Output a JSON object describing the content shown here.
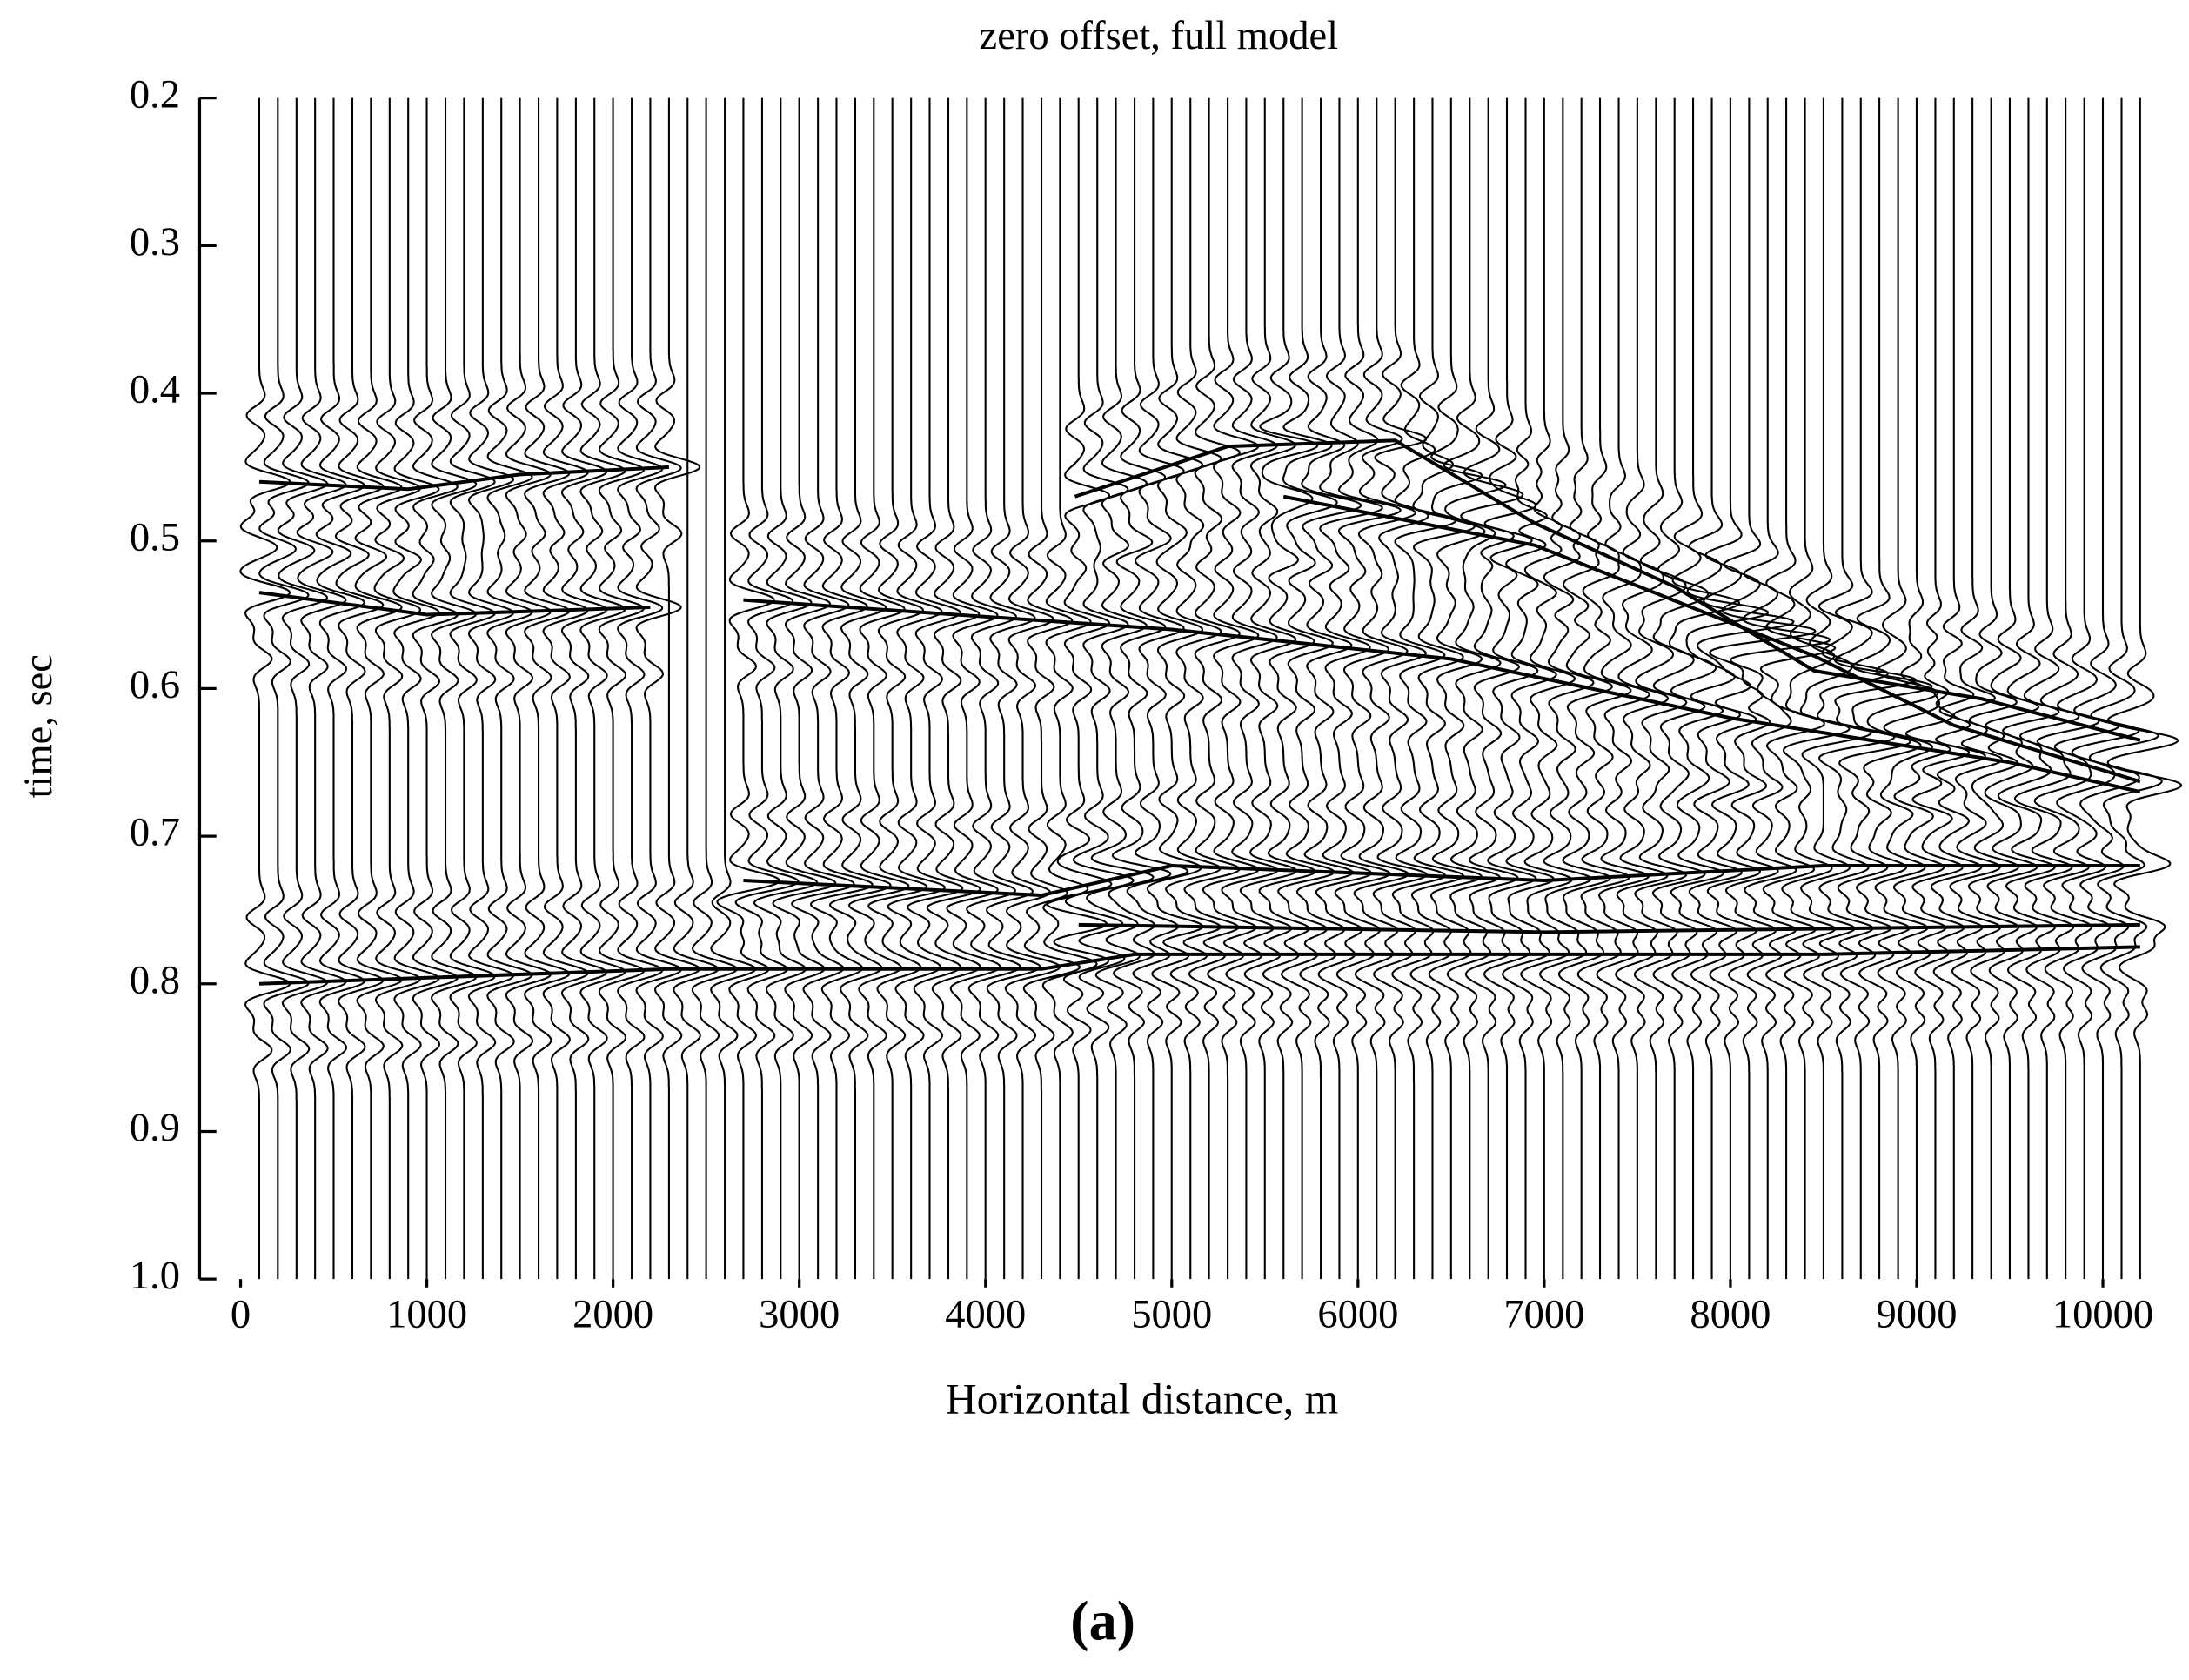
{
  "chart_data": {
    "type": "wiggle",
    "title": "zero offset, full model",
    "xlabel": "Horizontal distance, m",
    "ylabel": "time, sec",
    "caption": "(a)",
    "xlim": [
      -220,
      10200
    ],
    "xticks": [
      0,
      1000,
      2000,
      3000,
      4000,
      5000,
      6000,
      7000,
      8000,
      9000,
      10000
    ],
    "ylim": [
      0.2,
      1
    ],
    "yticks": [
      0.2,
      0.3,
      0.4,
      0.5,
      0.6,
      0.7,
      0.8,
      0.9,
      {
        "value": 1,
        "label": "1.0"
      }
    ],
    "y_inverted": true,
    "color": "#000000",
    "x": [
      100,
      200,
      300,
      400,
      500,
      600,
      700,
      800,
      900,
      1000,
      1100,
      1200,
      1300,
      1400,
      1500,
      1600,
      1700,
      1800,
      1900,
      2000,
      2100,
      2200,
      2300,
      2400,
      2500,
      2600,
      2700,
      2800,
      2900,
      3000,
      3100,
      3200,
      3300,
      3400,
      3500,
      3600,
      3700,
      3800,
      3900,
      4000,
      4100,
      4200,
      4300,
      4400,
      4500,
      4600,
      4700,
      4800,
      4900,
      5000,
      5100,
      5200,
      5300,
      5400,
      5500,
      5600,
      5700,
      5800,
      5900,
      6000,
      6100,
      6200,
      6300,
      6400,
      6500,
      6600,
      6700,
      6800,
      6900,
      7000,
      7100,
      7200,
      7300,
      7400,
      7500,
      7600,
      7700,
      7800,
      7900,
      8000,
      8100,
      8200,
      8300,
      8400,
      8500,
      8600,
      8700,
      8800,
      8900,
      9000,
      9100,
      9200,
      9300,
      9400,
      9500,
      9600,
      9700,
      9800,
      9900,
      10000,
      10100,
      10200
    ],
    "series": [
      {
        "color": "#000000",
        "x": [
          4480,
          5300,
          6200,
          6950,
          7700,
          8450,
          9350,
          10200
        ],
        "values": [
          0.47,
          0.436,
          0.432,
          0.488,
          0.531,
          0.588,
          0.607,
          0.635
        ]
      },
      {
        "color": "#000000",
        "x": [
          5600,
          6950,
          8450,
          9200,
          10200
        ],
        "values": [
          0.47,
          0.503,
          0.578,
          0.625,
          0.663
        ]
      },
      {
        "color": "#000000",
        "x": [
          100,
          900,
          1500,
          2300
        ],
        "values": [
          0.46,
          0.465,
          0.455,
          0.45
        ]
      },
      {
        "color": "#000000",
        "x": [
          100,
          1000,
          2200
        ],
        "values": [
          0.535,
          0.55,
          0.545
        ]
      },
      {
        "color": "#000000",
        "x": [
          2700,
          5000,
          6500,
          8000,
          9500,
          10200
        ],
        "values": [
          0.54,
          0.56,
          0.58,
          0.62,
          0.65,
          0.67
        ]
      },
      {
        "color": "#000000",
        "x": [
          2700,
          4300,
          5000,
          7000,
          8500,
          10200
        ],
        "values": [
          0.73,
          0.74,
          0.72,
          0.73,
          0.72,
          0.72
        ]
      },
      {
        "color": "#000000",
        "x": [
          100,
          2300,
          4300,
          4800,
          7000,
          8500,
          10200
        ],
        "values": [
          0.8,
          0.79,
          0.79,
          0.78,
          0.78,
          0.78,
          0.775
        ]
      },
      {
        "color": "#000000",
        "x": [
          4500,
          7000,
          10200
        ],
        "values": [
          0.76,
          0.765,
          0.76
        ]
      }
    ]
  }
}
